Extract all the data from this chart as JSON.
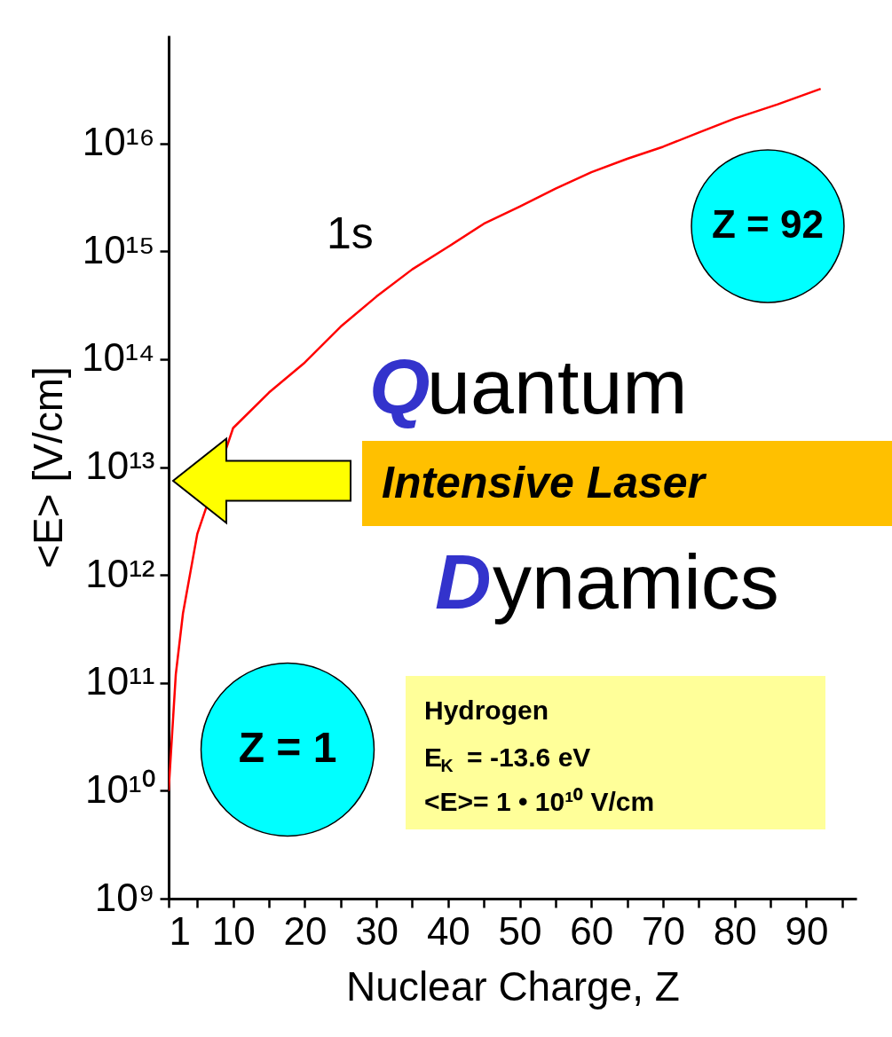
{
  "chart_data": {
    "type": "line",
    "xlabel": "Nuclear Charge, Z",
    "ylabel": "<E>  [V/cm]",
    "log": "y",
    "grid": false,
    "marker": "none",
    "line_style": "solid",
    "x": [
      1,
      2,
      3,
      5,
      10,
      15,
      20,
      25,
      30,
      35,
      40,
      45,
      50,
      55,
      60,
      65,
      70,
      75,
      80,
      86,
      92
    ],
    "series": [
      {
        "color": "#ff0000",
        "values": [
          10000000000.0,
          120000000000.0,
          440000000000.0,
          2400000000000.0,
          23000000000000.0,
          49000000000000.0,
          93000000000000.0,
          200000000000000.0,
          380000000000000.0,
          680000000000000.0,
          1100000000000000.0,
          1800000000000000.0,
          2600000000000000.0,
          3800000000000000.0,
          5400000000000000.0,
          7200000000000000.0,
          9300000000000000.0,
          1.26e+16,
          1.7e+16,
          2.3e+16,
          3.2e+16
        ]
      }
    ],
    "xlim": [
      1,
      97
    ],
    "xticks": [
      1,
      {
        "value": 5,
        "label": null
      },
      10,
      {
        "value": 15,
        "label": null
      },
      20,
      {
        "value": 25,
        "label": null
      },
      30,
      {
        "value": 35,
        "label": null
      },
      40,
      {
        "value": 45,
        "label": null
      },
      50,
      {
        "value": 55,
        "label": null
      },
      60,
      {
        "value": 65,
        "label": null
      },
      70,
      {
        "value": 75,
        "label": null
      },
      80,
      {
        "value": 85,
        "label": null
      },
      90,
      {
        "value": 95,
        "label": null
      }
    ],
    "ylim": [
      1000000000.0,
      1e+17
    ],
    "yticks": [
      {
        "value": 1000000000.0,
        "label": "10⁹"
      },
      {
        "value": 10000000000.0,
        "label": "10¹⁰"
      },
      {
        "value": 100000000000.0,
        "label": "10¹¹"
      },
      {
        "value": 1000000000000.0,
        "label": "10¹²"
      },
      {
        "value": 10000000000000.0,
        "label": "10¹³"
      },
      {
        "value": 100000000000000.0,
        "label": "10¹⁴"
      },
      {
        "value": 1000000000000000.0,
        "label": "10¹⁵"
      },
      {
        "value": 1e+16,
        "label": "10¹⁶"
      }
    ],
    "annotations": [
      "1s",
      "Z = 92",
      "Quantum",
      "Intensive Laser",
      "Dynamics",
      "Z = 1",
      "Hydrogen",
      "E$_{K}$  = -13.6 eV",
      "<E>= 1 • 10¹⁰ V/cm"
    ]
  }
}
